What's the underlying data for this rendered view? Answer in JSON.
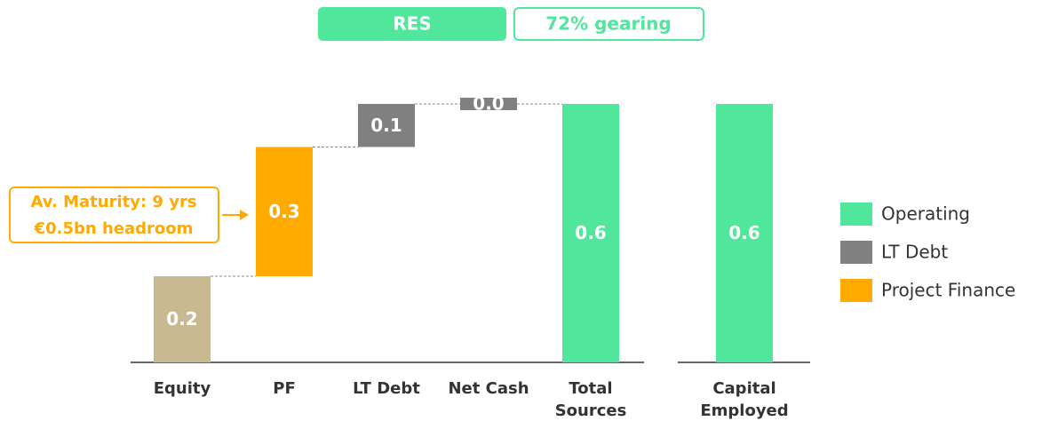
{
  "chart_data": {
    "type": "waterfall",
    "header": {
      "company": "RES",
      "gearing": "72% gearing"
    },
    "categories": [
      "Equity",
      "PF",
      "LT Debt",
      "Net Cash",
      "Total Sources",
      "Capital Employed"
    ],
    "values": [
      0.2,
      0.3,
      0.1,
      0.0,
      0.6,
      0.6
    ],
    "value_labels": [
      "0.2",
      "0.3",
      "0.1",
      "0.0",
      "0.6",
      "0.6"
    ],
    "bar_types": [
      "step",
      "step",
      "step",
      "step",
      "total",
      "total"
    ],
    "colors": [
      "#c8b992",
      "#ffaa00",
      "#808080",
      "#808080",
      "#50e69b",
      "#50e69b"
    ],
    "ylim": [
      0,
      0.6
    ],
    "annotation": [
      "Av. Maturity: 9 yrs",
      "€0.5bn headroom"
    ],
    "legend": [
      {
        "name": "Operating",
        "color": "#50e69b"
      },
      {
        "name": "LT Debt",
        "color": "#808080"
      },
      {
        "name": "Project Finance",
        "color": "#ffaa00"
      }
    ]
  }
}
